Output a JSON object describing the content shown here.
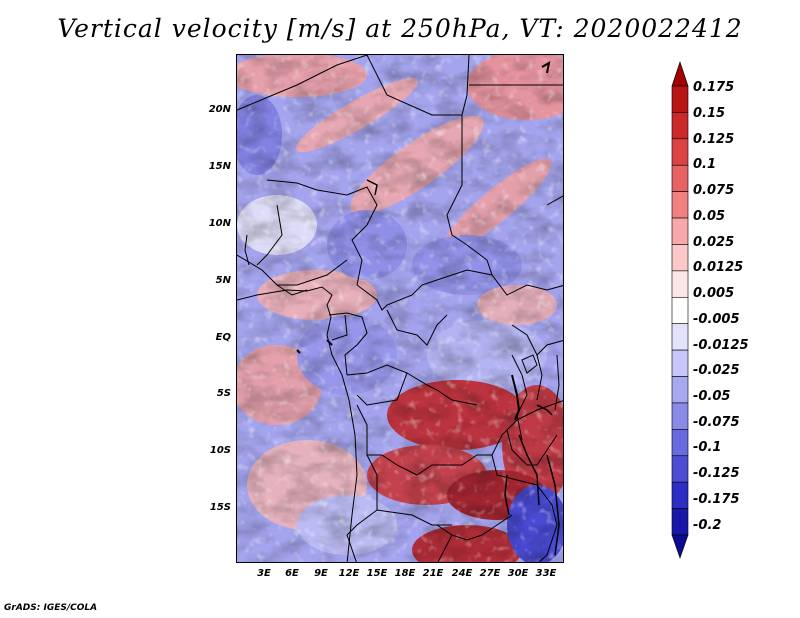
{
  "title": "Vertical velocity [m/s] at 250hPa, VT: 2020022412",
  "credit": "GrADS: IGES/COLA",
  "lat_labels": [
    "20N",
    "15N",
    "10N",
    "5N",
    "EQ",
    "5S",
    "10S",
    "15S"
  ],
  "lon_labels": [
    "3E",
    "6E",
    "9E",
    "12E",
    "15E",
    "18E",
    "21E",
    "24E",
    "27E",
    "30E",
    "33E"
  ],
  "colorbar": {
    "labels": [
      "0.175",
      "0.15",
      "0.125",
      "0.1",
      "0.075",
      "0.05",
      "0.025",
      "0.0125",
      "0.005",
      "-0.005",
      "-0.0125",
      "-0.025",
      "-0.05",
      "-0.075",
      "-0.1",
      "-0.125",
      "-0.175",
      "-0.2"
    ],
    "colors": [
      "#a00000",
      "#b81414",
      "#cc2a2a",
      "#dc4444",
      "#e76262",
      "#f08080",
      "#f7a8a8",
      "#fbc8c8",
      "#fde6e6",
      "#ffffff",
      "#e2e2fb",
      "#c6c6f7",
      "#a8a8f0",
      "#8a8ae8",
      "#6a6ae0",
      "#4c4cd4",
      "#2e2ec4",
      "#1818a8",
      "#0c0c90"
    ]
  }
}
